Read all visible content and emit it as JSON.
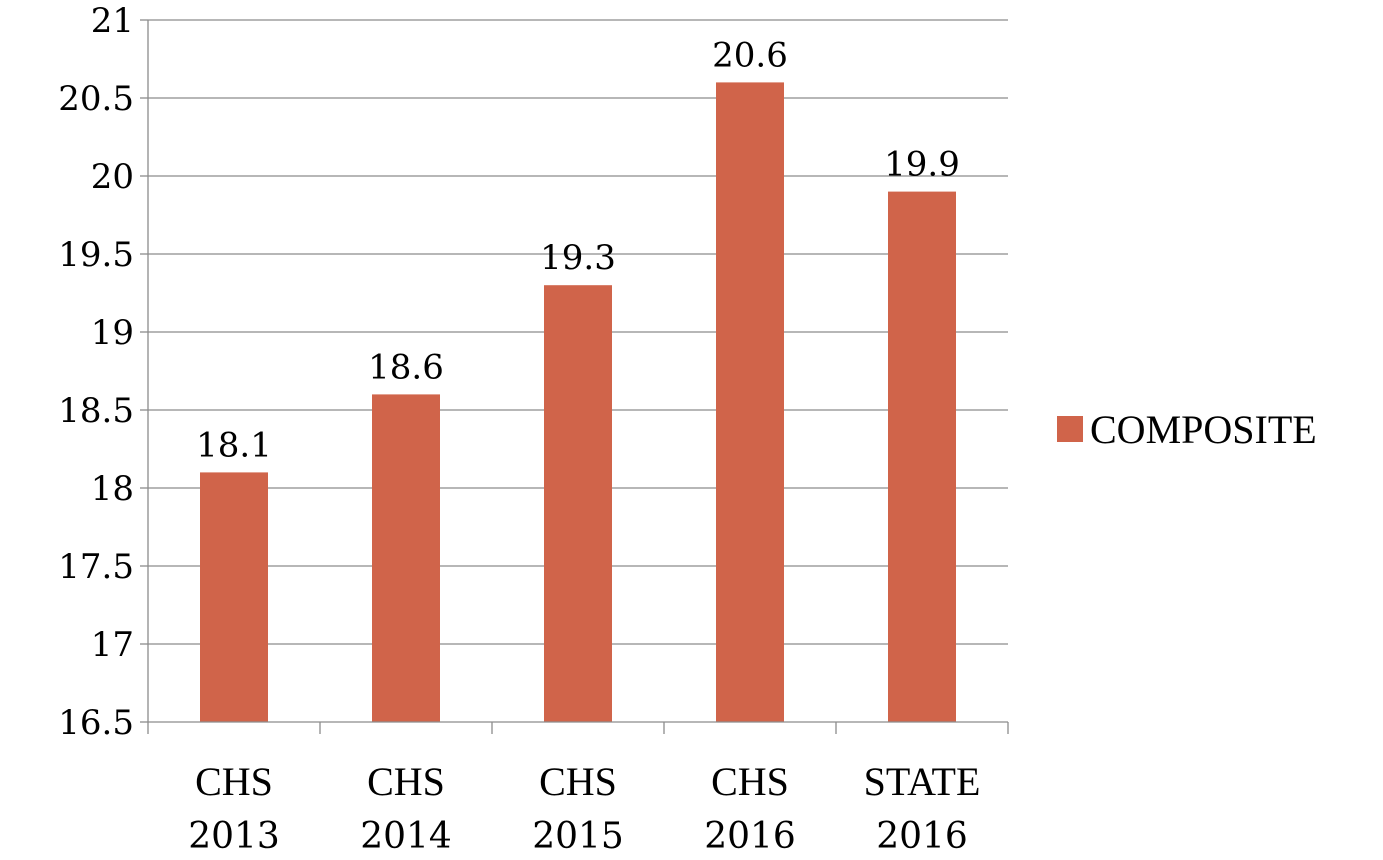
{
  "chart_data": {
    "type": "bar",
    "categories": [
      [
        "CHS",
        "2013"
      ],
      [
        "CHS",
        "2014"
      ],
      [
        "CHS",
        "2015"
      ],
      [
        "CHS",
        "2016"
      ],
      [
        "STATE",
        "2016"
      ]
    ],
    "series": [
      {
        "name": "COMPOSITE",
        "values": [
          18.1,
          18.6,
          19.3,
          20.6,
          19.9
        ],
        "color": "#d0644a"
      }
    ],
    "ylim": [
      16.5,
      21
    ],
    "yticks": [
      "16.5",
      "17",
      "17.5",
      "18",
      "18.5",
      "19",
      "19.5",
      "20",
      "20.5",
      "21"
    ],
    "data_labels": [
      "18.1",
      "18.6",
      "19.3",
      "20.6",
      "19.9"
    ],
    "grid": true,
    "legend_position": "right"
  }
}
